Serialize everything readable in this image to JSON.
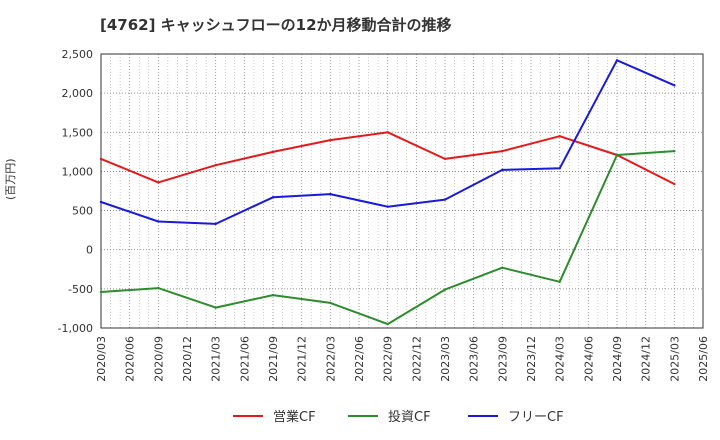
{
  "chart_data": {
    "type": "line",
    "title": "[4762]  キャッシュフローの12か月移動合計の推移",
    "ylabel": "(百万円)",
    "xlabel": "",
    "ylim": [
      -1000,
      2500
    ],
    "yticks": [
      2500,
      2000,
      1500,
      1000,
      500,
      0,
      -500,
      -1000
    ],
    "ytick_labels": [
      "2,500",
      "2,000",
      "1,500",
      "1,000",
      "500",
      "0",
      "-500",
      "-1,000"
    ],
    "categories": [
      "2020/03",
      "2020/06",
      "2020/09",
      "2020/12",
      "2021/03",
      "2021/06",
      "2021/09",
      "2021/12",
      "2022/03",
      "2022/06",
      "2022/09",
      "2022/12",
      "2023/03",
      "2023/06",
      "2023/09",
      "2023/12",
      "2024/03",
      "2024/06",
      "2024/09",
      "2024/12",
      "2025/03",
      "2025/06"
    ],
    "series": [
      {
        "name": "営業CF",
        "color": "#e31a1c",
        "x": [
          "2020/03",
          "2020/09",
          "2021/03",
          "2021/09",
          "2022/03",
          "2022/09",
          "2023/03",
          "2023/09",
          "2024/03",
          "2024/09",
          "2025/03"
        ],
        "values": [
          1160,
          860,
          1080,
          1250,
          1400,
          1500,
          1160,
          1260,
          1450,
          1210,
          840
        ]
      },
      {
        "name": "投資CF",
        "color": "#2e8b2e",
        "x": [
          "2020/03",
          "2020/09",
          "2021/03",
          "2021/09",
          "2022/03",
          "2022/09",
          "2023/03",
          "2023/09",
          "2024/03",
          "2024/09",
          "2025/03"
        ],
        "values": [
          -540,
          -490,
          -740,
          -580,
          -680,
          -950,
          -510,
          -230,
          -410,
          1210,
          1260
        ]
      },
      {
        "name": "フリーCF",
        "color": "#1a1adb",
        "x": [
          "2020/03",
          "2020/09",
          "2021/03",
          "2021/09",
          "2022/03",
          "2022/09",
          "2023/03",
          "2023/09",
          "2024/03",
          "2024/09",
          "2025/03"
        ],
        "values": [
          610,
          360,
          330,
          670,
          710,
          550,
          640,
          1020,
          1040,
          2420,
          2100
        ]
      }
    ],
    "legend_position": "bottom-center",
    "grid": true
  }
}
